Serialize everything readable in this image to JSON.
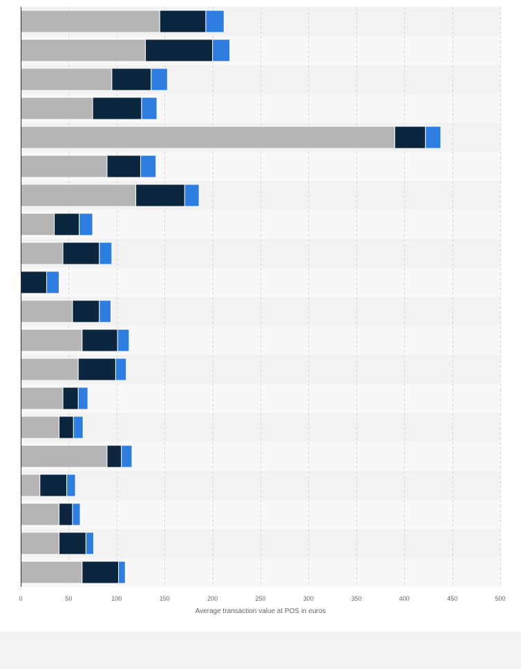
{
  "chart_data": {
    "type": "bar",
    "orientation": "horizontal",
    "stacked": true,
    "categories": [
      "",
      "",
      "",
      "",
      "",
      "",
      "",
      "",
      "",
      "",
      "",
      "",
      "",
      "",
      "",
      "",
      "",
      "",
      "",
      ""
    ],
    "series": [
      {
        "color": "#b5b5b5",
        "values": [
          145,
          130,
          95,
          75,
          390,
          90,
          120,
          35,
          44,
          0,
          54,
          64,
          60,
          44,
          40,
          90,
          20,
          40,
          40,
          64
        ]
      },
      {
        "color": "#0d2640",
        "values": [
          48,
          70,
          41,
          51,
          32,
          35,
          51,
          26,
          38,
          27,
          28,
          37,
          39,
          16,
          15,
          15,
          28,
          14,
          28,
          38
        ]
      },
      {
        "color": "#2e7de1",
        "values": [
          19,
          18,
          17,
          16,
          16,
          16,
          15,
          14,
          13,
          13,
          12,
          12,
          11,
          10,
          10,
          11,
          9,
          8,
          8,
          7
        ]
      }
    ],
    "xlabel": "Average transaction value at POS in euros",
    "ylabel": "",
    "xlim": [
      0,
      500
    ],
    "xticks": [
      0,
      50,
      100,
      150,
      200,
      250,
      300,
      350,
      400,
      450,
      500
    ],
    "grid": "vertical-dashed",
    "legend": "none"
  }
}
